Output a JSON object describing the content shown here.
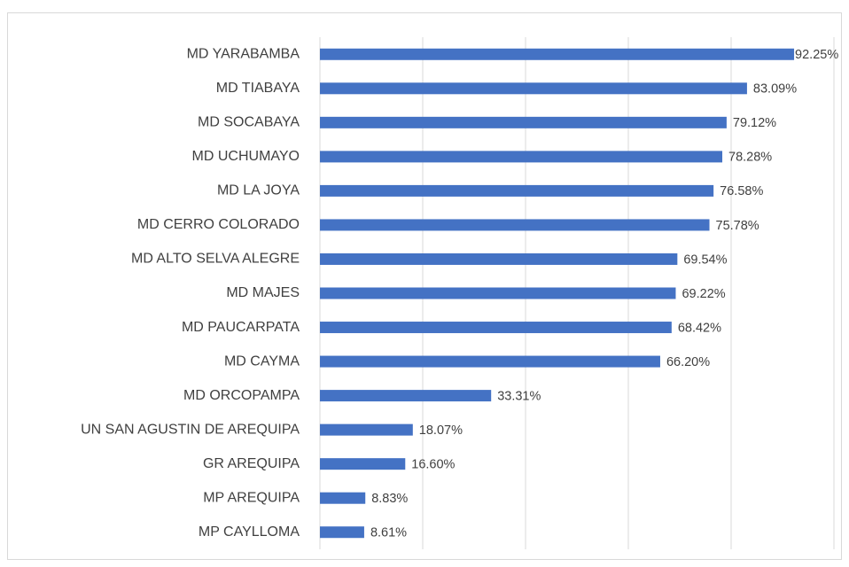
{
  "chart_data": {
    "type": "barh",
    "categories": [
      "MD YARABAMBA",
      "MD TIABAYA",
      "MD SOCABAYA",
      "MD UCHUMAYO",
      "MD LA JOYA",
      "MD CERRO COLORADO",
      "MD ALTO SELVA ALEGRE",
      "MD MAJES",
      "MD PAUCARPATA",
      "MD CAYMA",
      "MD ORCOPAMPA",
      "UN SAN AGUSTIN DE AREQUIPA",
      "GR AREQUIPA",
      "MP AREQUIPA",
      "MP CAYLLOMA"
    ],
    "values": [
      92.25,
      83.09,
      79.12,
      78.28,
      76.58,
      75.78,
      69.54,
      69.22,
      68.42,
      66.2,
      33.31,
      18.07,
      16.6,
      8.83,
      8.61
    ],
    "value_labels": [
      "92.25%",
      "83.09%",
      "79.12%",
      "78.28%",
      "76.58%",
      "75.78%",
      "69.54%",
      "69.22%",
      "68.42%",
      "66.20%",
      "33.31%",
      "18.07%",
      "16.60%",
      "8.83%",
      "8.61%"
    ],
    "color": "#4472c4",
    "xlim": [
      0,
      100
    ],
    "xticks": [
      0,
      20,
      40,
      60,
      80,
      100
    ],
    "grid": true
  }
}
